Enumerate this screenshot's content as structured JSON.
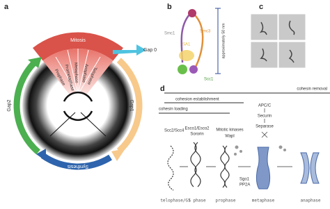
{
  "panels": {
    "a": {
      "label": "a",
      "mitosis": "Mitosis",
      "phases": [
        "Prophase",
        "Prometaphase",
        "Metaphase",
        "Anaphase",
        "Telophase"
      ],
      "gap0": "Gap 0",
      "interphase": "Interphase",
      "gap2": "Gap2",
      "gap1": "Gap1",
      "synthesis": "Synthesis"
    },
    "b": {
      "label": "b",
      "smc1": "Smc1",
      "smc3": "Smc3",
      "sa1": "SA1",
      "scc1": "Scc1",
      "scale": "approximately 50 nm"
    },
    "c": {
      "label": "c"
    },
    "d": {
      "label": "d",
      "removal": "cohesin removal",
      "establishment": "cohesion establishment",
      "loading": "cohesin loading",
      "factors": [
        "Scc2/Scc4",
        "Esco1/Esco2",
        "Sororin",
        "Mitotic kinases",
        "Wapl",
        "APC/C",
        "Securin",
        "Separase",
        "Sgo1",
        "PP2A"
      ],
      "stages": [
        "telophase/G1",
        "S phase",
        "prophase",
        "metaphase",
        "anaphase"
      ]
    }
  }
}
